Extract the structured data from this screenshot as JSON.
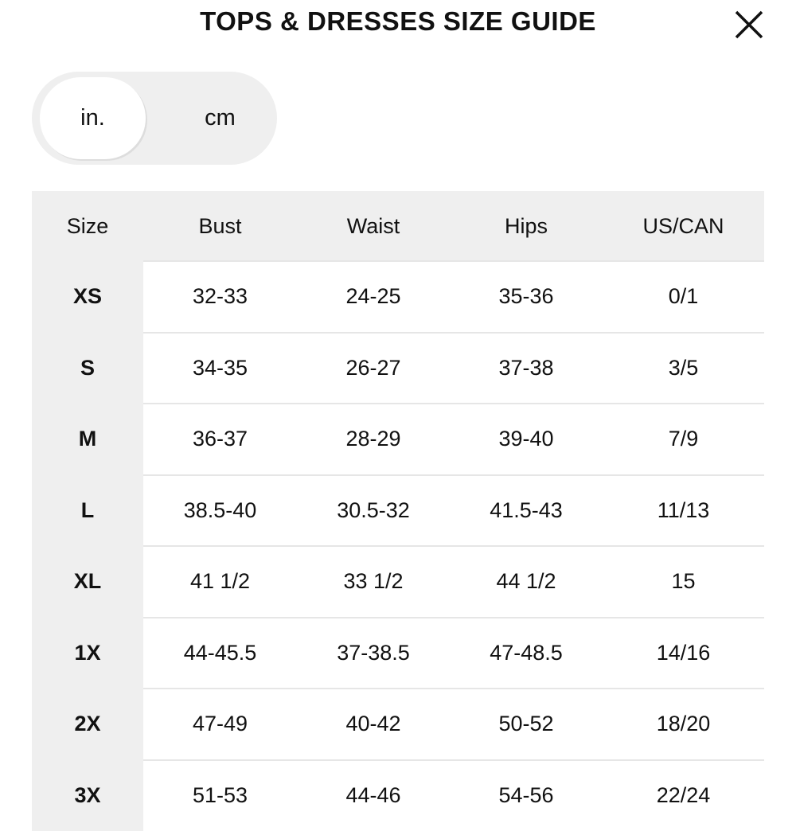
{
  "header": {
    "title": "TOPS & DRESSES SIZE GUIDE"
  },
  "unit_toggle": {
    "options": [
      "in.",
      "cm"
    ],
    "selected": 0
  },
  "table": {
    "columns": [
      "Size",
      "Bust",
      "Waist",
      "Hips",
      "US/CAN"
    ],
    "rows": [
      [
        "XS",
        "32-33",
        "24-25",
        "35-36",
        "0/1"
      ],
      [
        "S",
        "34-35",
        "26-27",
        "37-38",
        "3/5"
      ],
      [
        "M",
        "36-37",
        "28-29",
        "39-40",
        "7/9"
      ],
      [
        "L",
        "38.5-40",
        "30.5-32",
        "41.5-43",
        "11/13"
      ],
      [
        "XL",
        "41 1/2",
        "33 1/2",
        "44 1/2",
        "15"
      ],
      [
        "1X",
        "44-45.5",
        "37-38.5",
        "47-48.5",
        "14/16"
      ],
      [
        "2X",
        "47-49",
        "40-42",
        "50-52",
        "18/20"
      ],
      [
        "3X",
        "51-53",
        "44-46",
        "54-56",
        "22/24"
      ]
    ]
  }
}
